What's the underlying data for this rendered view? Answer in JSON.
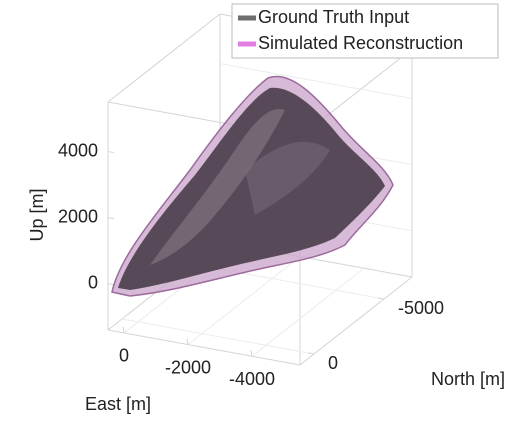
{
  "chart_data": {
    "type": "surface3d",
    "xlabel": "East [m]",
    "ylabel": "North [m]",
    "zlabel": "Up [m]",
    "xlim": [
      500,
      -5500
    ],
    "xticks": [
      0,
      -2000,
      -4000
    ],
    "ylim": [
      1000,
      -7000
    ],
    "yticks": [
      -5000,
      0
    ],
    "zlim": [
      -1400,
      5500
    ],
    "zticks": [
      0,
      2000,
      4000
    ],
    "series": [
      {
        "name": "Ground Truth Input",
        "color": "#6e6e6e"
      },
      {
        "name": "Simulated Reconstruction",
        "color": "#e07fe0"
      }
    ],
    "grid": true
  }
}
